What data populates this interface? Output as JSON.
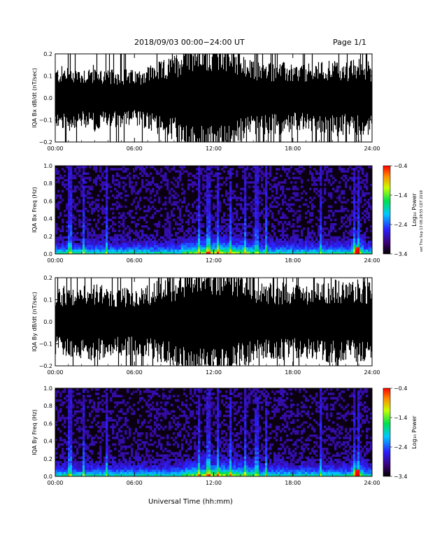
{
  "header": {
    "title": "2018/09/03   00:00−24:00 UT",
    "page": "Page 1/1"
  },
  "side_note": "set Thu Sep 13 08:29:55 CDT 2018",
  "x_axis_title": "Universal Time (hh:mm)",
  "chart_data": [
    {
      "type": "area",
      "panel": "iqa-bx-dbdt",
      "ylabel": "IQA Bx dB/dt (nT/sec)",
      "ylim": [
        -0.2,
        0.2
      ],
      "yticks": [
        "0.2",
        "0.1",
        "0.0",
        "−0.1",
        "−0.2"
      ],
      "xticks": [
        "00:00",
        "06:00",
        "12:00",
        "18:00",
        "24:00"
      ],
      "xlim_hours": [
        0,
        24
      ],
      "fill_color": "#000000",
      "envelope": {
        "x_hours": [
          0,
          1,
          2,
          3,
          4,
          5,
          6,
          7,
          8,
          9,
          10,
          11,
          12,
          13,
          14,
          15,
          16,
          17,
          18,
          19,
          20,
          21,
          22,
          23,
          24
        ],
        "amplitude": [
          0.1,
          0.11,
          0.1,
          0.11,
          0.09,
          0.1,
          0.09,
          0.11,
          0.12,
          0.14,
          0.2,
          0.2,
          0.2,
          0.2,
          0.14,
          0.12,
          0.12,
          0.12,
          0.11,
          0.11,
          0.12,
          0.13,
          0.12,
          0.13,
          0.12
        ]
      }
    },
    {
      "type": "heatmap",
      "panel": "iqa-bx-freq",
      "ylabel": "IQA Bx Freq (Hz)",
      "ylim": [
        0.0,
        1.0
      ],
      "yticks": [
        "1.0",
        "0.8",
        "0.6",
        "0.4",
        "0.2",
        "0.0"
      ],
      "xticks": [
        "00:00",
        "06:00",
        "12:00",
        "18:00",
        "24:00"
      ],
      "colorbar": {
        "label": "Log₁₀ Power",
        "ticks": [
          "−0.4",
          "−1.4",
          "−2.4",
          "−3.4"
        ],
        "range": [
          -3.4,
          -0.4
        ]
      },
      "vertical_events_hours": [
        1.0,
        2.1,
        3.8,
        10.8,
        11.5,
        12.2,
        13.2,
        14.3,
        15.2,
        15.9,
        20.0,
        22.6,
        22.9
      ],
      "low_freq_enhancement_hours": [
        [
          9.5,
          15.0
        ],
        [
          22.3,
          23.3
        ]
      ]
    },
    {
      "type": "area",
      "panel": "iqa-by-dbdt",
      "ylabel": "IQA By dB/dt (nT/sec)",
      "ylim": [
        -0.2,
        0.2
      ],
      "yticks": [
        "0.2",
        "0.1",
        "0.0",
        "−0.1",
        "−0.2"
      ],
      "xticks": [
        "00:00",
        "06:00",
        "12:00",
        "18:00",
        "24:00"
      ],
      "xlim_hours": [
        0,
        24
      ],
      "fill_color": "#000000",
      "envelope": {
        "x_hours": [
          0,
          1,
          2,
          3,
          4,
          5,
          6,
          7,
          8,
          9,
          10,
          11,
          12,
          13,
          14,
          15,
          16,
          17,
          18,
          19,
          20,
          21,
          22,
          23,
          24
        ],
        "amplitude": [
          0.11,
          0.12,
          0.12,
          0.13,
          0.11,
          0.11,
          0.11,
          0.12,
          0.14,
          0.15,
          0.2,
          0.2,
          0.2,
          0.2,
          0.15,
          0.13,
          0.13,
          0.13,
          0.12,
          0.12,
          0.13,
          0.14,
          0.13,
          0.14,
          0.13
        ]
      }
    },
    {
      "type": "heatmap",
      "panel": "iqa-by-freq",
      "ylabel": "IQA By Freq (Hz)",
      "ylim": [
        0.0,
        1.0
      ],
      "yticks": [
        "1.0",
        "0.8",
        "0.6",
        "0.4",
        "0.2",
        "0.0"
      ],
      "xticks": [
        "00:00",
        "06:00",
        "12:00",
        "18:00",
        "24:00"
      ],
      "colorbar": {
        "label": "Log₁₀ Power",
        "ticks": [
          "−0.4",
          "−1.4",
          "−2.4",
          "−3.4"
        ],
        "range": [
          -3.4,
          -0.4
        ]
      },
      "vertical_events_hours": [
        1.0,
        2.1,
        3.8,
        10.8,
        11.5,
        12.2,
        13.2,
        14.3,
        15.2,
        15.9,
        20.0,
        22.6,
        22.9
      ],
      "low_freq_enhancement_hours": [
        [
          9.5,
          15.0
        ],
        [
          22.3,
          23.3
        ]
      ]
    }
  ]
}
